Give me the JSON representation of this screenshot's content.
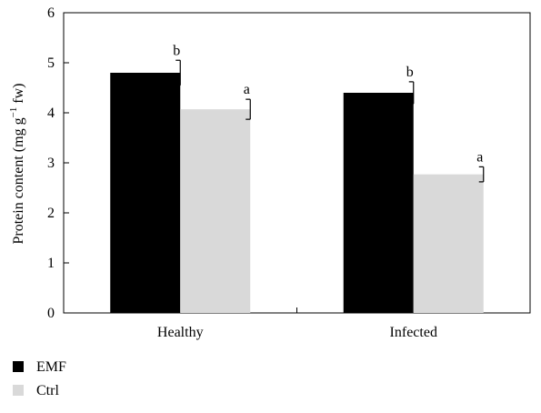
{
  "chart_data": {
    "type": "bar",
    "categories": [
      "Healthy",
      "Infected"
    ],
    "series": [
      {
        "name": "EMF",
        "color": "#000000",
        "values": [
          4.8,
          4.4
        ],
        "errors": [
          0.25,
          0.22
        ],
        "labels": [
          "b",
          "b"
        ]
      },
      {
        "name": "Ctrl",
        "color": "#d9d9d9",
        "values": [
          4.07,
          2.77
        ],
        "errors": [
          0.2,
          0.15
        ],
        "labels": [
          "a",
          "a"
        ]
      }
    ],
    "ylabel_main": "Protein content (mg g",
    "ylabel_sup": "−1",
    "ylabel_end": " fw)",
    "ylim": [
      0,
      6
    ],
    "yticks": [
      "0",
      "1",
      "2",
      "3",
      "4",
      "5",
      "6"
    ],
    "legend_position": "bottom-left"
  }
}
